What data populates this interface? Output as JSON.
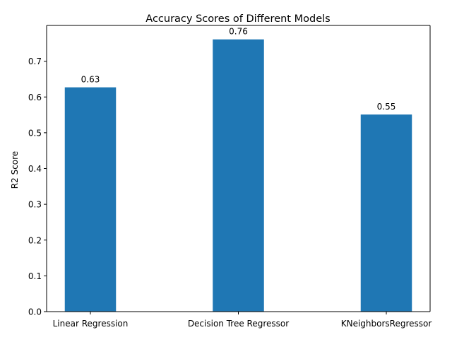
{
  "chart_data": {
    "type": "bar",
    "title": "Accuracy Scores of Different Models",
    "xlabel": "",
    "ylabel": "R2 Score",
    "categories": [
      "Linear Regression",
      "Decision Tree Regressor",
      "KNeighborsRegressor"
    ],
    "values": [
      0.627,
      0.761,
      0.551
    ],
    "value_labels": [
      "0.63",
      "0.76",
      "0.55"
    ],
    "ylim": [
      0.0,
      0.8
    ],
    "yticks": [
      0.0,
      0.1,
      0.2,
      0.3,
      0.4,
      0.5,
      0.6,
      0.7
    ],
    "ytick_labels": [
      "0.0",
      "0.1",
      "0.2",
      "0.3",
      "0.4",
      "0.5",
      "0.6",
      "0.7"
    ],
    "grid": false,
    "bar_color": "#1f77b4"
  }
}
